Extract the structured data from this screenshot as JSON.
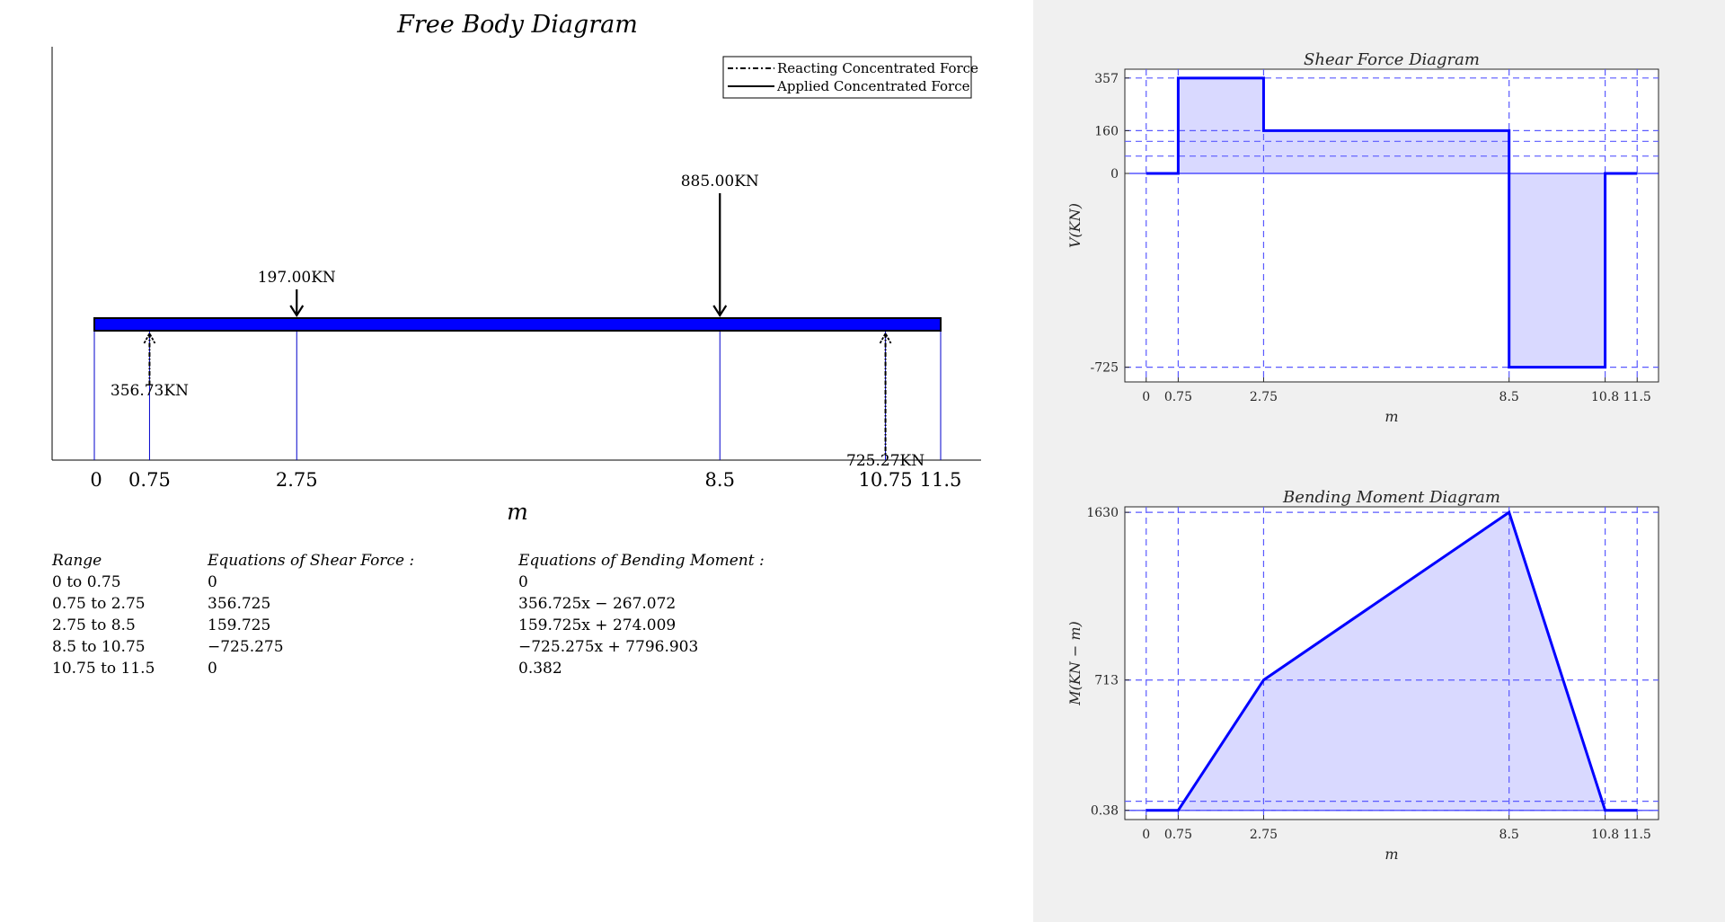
{
  "fbd": {
    "title": "Free Body Diagram",
    "xlabel": "m",
    "legend": {
      "reacting": "Reacting Concentrated Force",
      "applied": "Applied Concentrated Force"
    },
    "beam": {
      "start": 0,
      "end": 11.5
    },
    "x_ticks": [
      {
        "value": 0,
        "label": "0"
      },
      {
        "value": 0.75,
        "label": "0.75"
      },
      {
        "value": 2.75,
        "label": "2.75"
      },
      {
        "value": 8.5,
        "label": "8.5"
      },
      {
        "value": 10.75,
        "label": "10.75"
      },
      {
        "value": 11.5,
        "label": "11.5"
      }
    ],
    "applied_forces": [
      {
        "position": 2.75,
        "label": "197.00KN",
        "magnitude": 197
      },
      {
        "position": 8.5,
        "label": "885.00KN",
        "magnitude": 885
      }
    ],
    "reactions": [
      {
        "position": 0.75,
        "label": "356.73KN",
        "magnitude": 356.73
      },
      {
        "position": 10.75,
        "label": "725.27KN",
        "magnitude": 725.27
      }
    ],
    "colors": {
      "beam": "#0000ff",
      "force": "#000000",
      "guide": "#0000cc"
    }
  },
  "equations": {
    "headers": {
      "range": "Range",
      "shear": "Equations of Shear Force :",
      "moment": "Equations of Bending Moment :"
    },
    "rows": [
      {
        "range": "0 to 0.75",
        "shear": "0",
        "moment": "0"
      },
      {
        "range": "0.75 to 2.75",
        "shear": "356.725",
        "moment": "356.725x − 267.072"
      },
      {
        "range": "2.75 to 8.5",
        "shear": "159.725",
        "moment": "159.725x + 274.009"
      },
      {
        "range": "8.5 to 10.75",
        "shear": "−725.275",
        "moment": "−725.275x + 7796.903"
      },
      {
        "range": "10.75 to 11.5",
        "shear": "0",
        "moment": "0.382"
      }
    ]
  },
  "chart_data": [
    {
      "type": "area",
      "title": "Shear Force Diagram",
      "xlabel": "m",
      "ylabel": "V(KN)",
      "x": [
        0,
        0.75,
        0.75,
        2.75,
        2.75,
        8.5,
        8.5,
        10.75,
        10.75,
        11.5
      ],
      "y": [
        0,
        0,
        357,
        357,
        160,
        160,
        -725,
        -725,
        0,
        0
      ],
      "xlim": [
        -0.5,
        12
      ],
      "ylim": [
        -780,
        390
      ],
      "x_ticks": [
        {
          "value": 0,
          "label": "0"
        },
        {
          "value": 0.75,
          "label": "0.75"
        },
        {
          "value": 2.75,
          "label": "2.75"
        },
        {
          "value": 8.5,
          "label": "8.5"
        },
        {
          "value": 10.75,
          "label": "10.8"
        },
        {
          "value": 11.5,
          "label": "11.5"
        }
      ],
      "y_ticks": [
        {
          "value": 357,
          "label": "357"
        },
        {
          "value": 160,
          "label": "160"
        },
        {
          "value": 0,
          "label": "0"
        },
        {
          "value": -725,
          "label": "-725"
        }
      ],
      "h_guides": [
        357,
        160,
        120,
        65,
        -725
      ],
      "v_guides": [
        0,
        0.75,
        2.75,
        8.5,
        10.75,
        11.5
      ]
    },
    {
      "type": "area",
      "title": "Bending Moment Diagram",
      "xlabel": "m",
      "ylabel": "M(KN − m)",
      "x": [
        0,
        0.75,
        2.75,
        8.5,
        10.75,
        11.5
      ],
      "y": [
        0.38,
        0.38,
        713,
        1630,
        0.38,
        0.38
      ],
      "xlim": [
        -0.5,
        12
      ],
      "ylim": [
        -50,
        1660
      ],
      "x_ticks": [
        {
          "value": 0,
          "label": "0"
        },
        {
          "value": 0.75,
          "label": "0.75"
        },
        {
          "value": 2.75,
          "label": "2.75"
        },
        {
          "value": 8.5,
          "label": "8.5"
        },
        {
          "value": 10.75,
          "label": "10.8"
        },
        {
          "value": 11.5,
          "label": "11.5"
        }
      ],
      "y_ticks": [
        {
          "value": 1630,
          "label": "1630"
        },
        {
          "value": 713,
          "label": "713"
        },
        {
          "value": 0.38,
          "label": "0.38"
        }
      ],
      "h_guides": [
        1630,
        713,
        50,
        0.38
      ],
      "v_guides": [
        0,
        0.75,
        2.75,
        8.5,
        10.75,
        11.5
      ]
    }
  ]
}
